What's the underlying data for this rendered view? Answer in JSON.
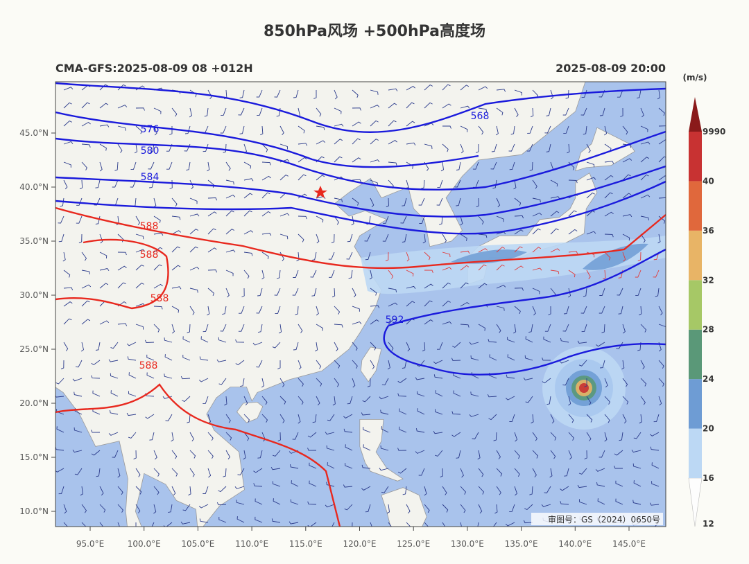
{
  "header": {
    "title": "850hPa风场 +500hPa高度场",
    "left": "CMA-GFS:2025-08-09 08 +012H",
    "right": "2025-08-09 20:00"
  },
  "map": {
    "lat_labels": [
      "45.0°N",
      "40.0°N",
      "35.0°N",
      "30.0°N",
      "25.0°N",
      "20.0°N",
      "15.0°N",
      "10.0°N"
    ],
    "lon_labels": [
      "95.0°E",
      "100.0°E",
      "105.0°E",
      "110.0°E",
      "115.0°E",
      "120.0°E",
      "125.0°E",
      "130.0°E",
      "135.0°E",
      "140.0°E",
      "145.0°E"
    ],
    "contour_labels": [
      {
        "text": "576",
        "color": "#1a1adc"
      },
      {
        "text": "580",
        "color": "#1a1adc"
      },
      {
        "text": "584",
        "color": "#1a1adc"
      },
      {
        "text": "588",
        "color": "#e8281e"
      },
      {
        "text": "588",
        "color": "#e8281e"
      },
      {
        "text": "588",
        "color": "#e8281e"
      },
      {
        "text": "588",
        "color": "#e8281e"
      },
      {
        "text": "592",
        "color": "#1a1adc"
      },
      {
        "text": "568",
        "color": "#1a1adc"
      }
    ],
    "review_no": "审图号：GS（2024）0650号"
  },
  "colorbar": {
    "unit": "(m/s)",
    "levels": [
      12,
      16,
      20,
      24,
      28,
      32,
      36,
      40,
      9990
    ],
    "colors": [
      "#bcd8f4",
      "#6e9cd4",
      "#5a9878",
      "#a6c866",
      "#e8b466",
      "#e0683c",
      "#c83232",
      "#8a1a1a"
    ]
  }
}
